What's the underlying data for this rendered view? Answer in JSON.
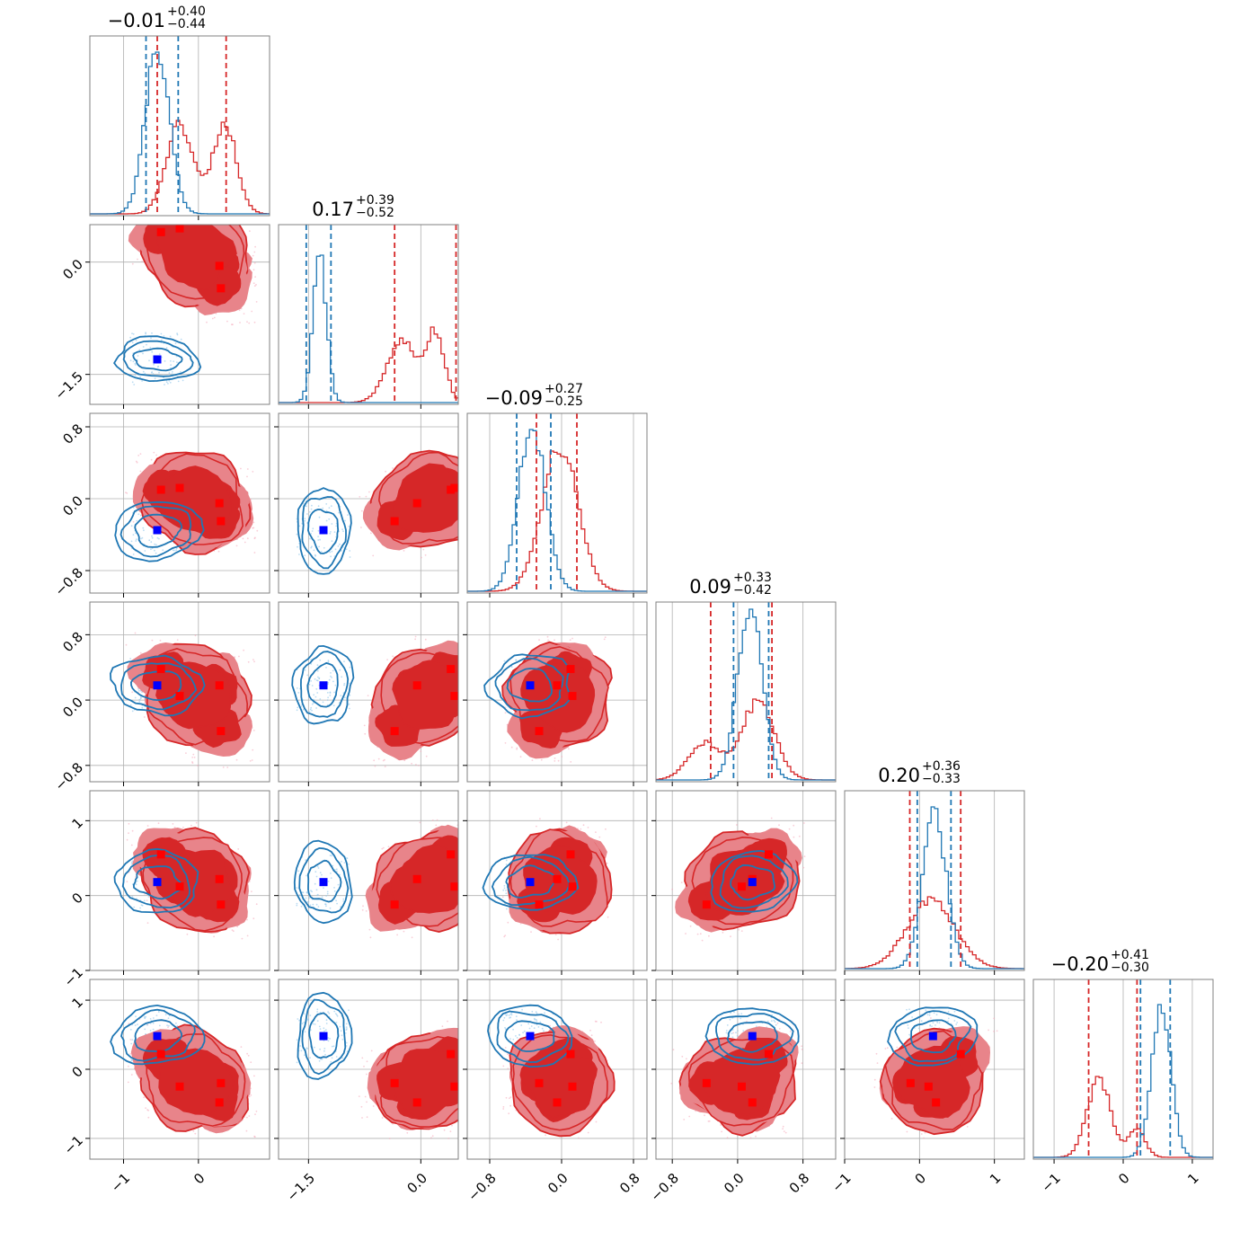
{
  "chart_data": {
    "type": "corner",
    "colors": {
      "primary": "#d62728",
      "secondary": "#1f77b4",
      "primary_fill": "#e8848a",
      "secondary_point": "#0000ff",
      "primary_point": "#ff0000"
    },
    "grid": true,
    "params": [
      {
        "title": {
          "main": "−0.01",
          "sup": "+0.40",
          "sub": "−0.44"
        },
        "range": [
          -1.45,
          0.95
        ],
        "xticks": [
          {
            "v": -1,
            "label": "−1"
          },
          {
            "v": 0,
            "label": "0"
          }
        ],
        "yticks": [],
        "red_hist": {
          "mu": [
            -0.25,
            0.35
          ],
          "sd": [
            0.18,
            0.16
          ],
          "w": [
            0.5,
            0.5
          ],
          "peak": 0.52
        },
        "blue_hist": {
          "mu": [
            -0.55
          ],
          "sd": [
            0.16
          ],
          "w": [
            1
          ],
          "peak": 0.9
        },
        "red_q": [
          -0.55,
          0.37
        ],
        "blue_q": [
          -0.7,
          -0.27
        ]
      },
      {
        "title": {
          "main": "0.17",
          "sup": "+0.39",
          "sub": "−0.52"
        },
        "range": [
          -1.9,
          0.5
        ],
        "xticks": [
          {
            "v": -1.5,
            "label": "−1.5"
          },
          {
            "v": 0.0,
            "label": "0.0"
          }
        ],
        "yticks": [
          {
            "v": 0.0,
            "label": "0.0"
          },
          {
            "v": -1.5,
            "label": "−1.5"
          }
        ],
        "red_hist": {
          "mu": [
            -0.25,
            0.2
          ],
          "sd": [
            0.2,
            0.12
          ],
          "w": [
            0.5,
            0.55
          ],
          "peak": 0.42
        },
        "blue_hist": {
          "mu": [
            -1.35
          ],
          "sd": [
            0.09
          ],
          "w": [
            1
          ],
          "peak": 0.82
        },
        "red_q": [
          -0.35,
          0.47
        ],
        "blue_q": [
          -1.53,
          -1.2
        ]
      },
      {
        "title": {
          "main": "−0.09",
          "sup": "+0.27",
          "sub": "−0.25"
        },
        "range": [
          -1.05,
          0.95
        ],
        "xticks": [
          {
            "v": -0.8,
            "label": "−0.8"
          },
          {
            "v": 0.0,
            "label": "0.0"
          },
          {
            "v": 0.8,
            "label": "0.8"
          }
        ],
        "yticks": [
          {
            "v": 0.8,
            "label": "0.8"
          },
          {
            "v": 0.0,
            "label": "0.0"
          },
          {
            "v": -0.8,
            "label": "−0.8"
          }
        ],
        "red_hist": {
          "mu": [
            -0.02
          ],
          "sd": [
            0.2
          ],
          "w": [
            1
          ],
          "peak": 0.78
        },
        "blue_hist": {
          "mu": [
            -0.33
          ],
          "sd": [
            0.15
          ],
          "w": [
            1
          ],
          "peak": 0.9
        },
        "red_q": [
          -0.28,
          0.17
        ],
        "blue_q": [
          -0.5,
          -0.12
        ]
      },
      {
        "title": {
          "main": "0.09",
          "sup": "+0.33",
          "sub": "−0.42"
        },
        "range": [
          -1.0,
          1.2
        ],
        "xticks": [
          {
            "v": -0.8,
            "label": "−0.8"
          },
          {
            "v": 0.0,
            "label": "0.0"
          },
          {
            "v": 0.8,
            "label": "0.8"
          }
        ],
        "yticks": [
          {
            "v": 0.8,
            "label": "0.8"
          },
          {
            "v": 0.0,
            "label": "0.0"
          },
          {
            "v": -0.8,
            "label": "−0.8"
          }
        ],
        "red_hist": {
          "mu": [
            -0.4,
            0.25
          ],
          "sd": [
            0.2,
            0.2
          ],
          "w": [
            0.35,
            0.75
          ],
          "peak": 0.45
        },
        "blue_hist": {
          "mu": [
            0.15
          ],
          "sd": [
            0.15
          ],
          "w": [
            1
          ],
          "peak": 0.95
        },
        "red_q": [
          -0.33,
          0.42
        ],
        "blue_q": [
          -0.05,
          0.38
        ]
      },
      {
        "title": {
          "main": "0.20",
          "sup": "+0.36",
          "sub": "−0.33"
        },
        "range": [
          -1.0,
          1.4
        ],
        "xticks": [
          {
            "v": -1,
            "label": "−1"
          },
          {
            "v": 0,
            "label": "0"
          },
          {
            "v": 1,
            "label": "1"
          }
        ],
        "yticks": [
          {
            "v": 1,
            "label": "1"
          },
          {
            "v": 0,
            "label": "0"
          },
          {
            "v": -1,
            "label": "−1"
          }
        ],
        "red_hist": {
          "mu": [
            0.15
          ],
          "sd": [
            0.32
          ],
          "w": [
            1
          ],
          "peak": 0.4
        },
        "blue_hist": {
          "mu": [
            0.2
          ],
          "sd": [
            0.16
          ],
          "w": [
            1
          ],
          "peak": 0.9
        },
        "red_q": [
          -0.13,
          0.55
        ],
        "blue_q": [
          -0.03,
          0.42
        ]
      },
      {
        "title": {
          "main": "−0.20",
          "sup": "+0.41",
          "sub": "−0.30"
        },
        "range": [
          -1.3,
          1.3
        ],
        "xticks": [
          {
            "v": -1,
            "label": "−1"
          },
          {
            "v": 0,
            "label": "0"
          },
          {
            "v": 1,
            "label": "1"
          }
        ],
        "yticks": [
          {
            "v": 1,
            "label": "1"
          },
          {
            "v": 0,
            "label": "0"
          },
          {
            "v": -1,
            "label": "−1"
          }
        ],
        "red_hist": {
          "mu": [
            -0.35,
            0.2
          ],
          "sd": [
            0.17,
            0.12
          ],
          "w": [
            0.7,
            0.25
          ],
          "peak": 0.45
        },
        "blue_hist": {
          "mu": [
            0.55
          ],
          "sd": [
            0.14
          ],
          "w": [
            1
          ],
          "peak": 0.85
        },
        "red_q": [
          -0.5,
          0.2
        ],
        "blue_q": [
          0.25,
          0.68
        ]
      }
    ],
    "blue_points": [
      -0.55,
      -1.3,
      -0.35,
      0.18,
      0.18,
      0.48
    ],
    "red_points": [
      [
        -0.5,
        0.4,
        0.1,
        0.38,
        0.55,
        0.22
      ],
      [
        -0.25,
        0.45,
        0.12,
        0.05,
        0.12,
        -0.25
      ],
      [
        0.28,
        -0.05,
        -0.05,
        0.18,
        0.22,
        -0.48
      ],
      [
        0.3,
        -0.35,
        -0.25,
        -0.38,
        -0.12,
        -0.2
      ]
    ]
  }
}
